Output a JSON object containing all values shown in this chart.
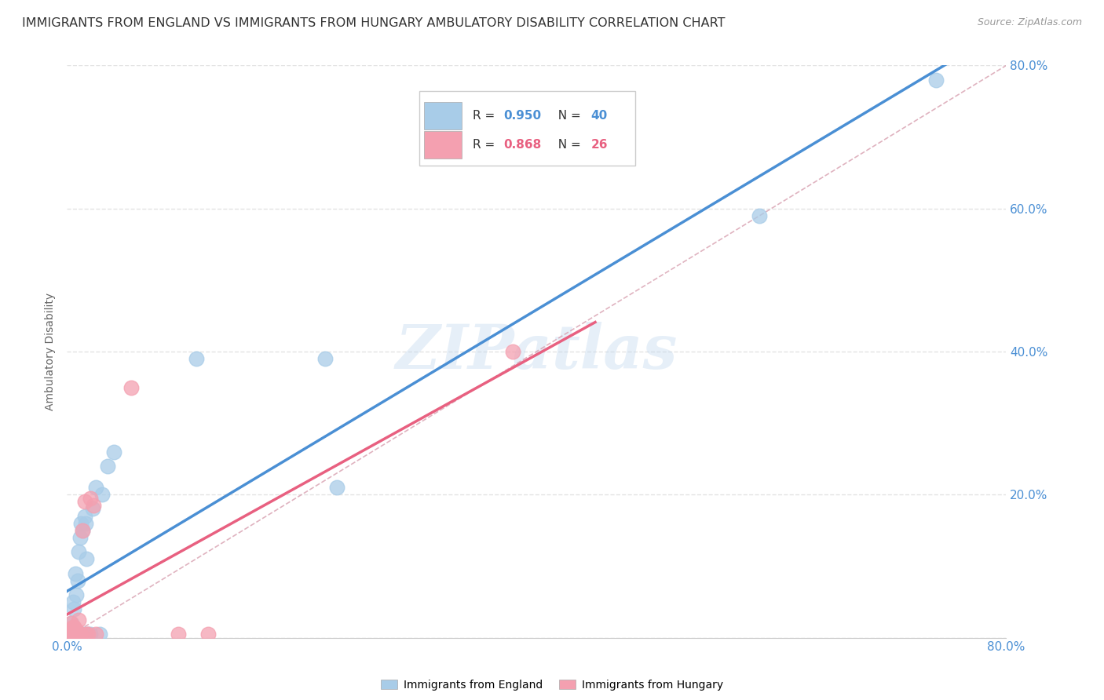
{
  "title": "IMMIGRANTS FROM ENGLAND VS IMMIGRANTS FROM HUNGARY AMBULATORY DISABILITY CORRELATION CHART",
  "source": "Source: ZipAtlas.com",
  "ylabel": "Ambulatory Disability",
  "xlim": [
    0,
    0.8
  ],
  "ylim": [
    0,
    0.8
  ],
  "england_color": "#A8CCE8",
  "hungary_color": "#F4A0B0",
  "england_line_color": "#4A8FD4",
  "hungary_line_color": "#E86080",
  "diagonal_color": "#D8A0B0",
  "watermark": "ZIPatlas",
  "background_color": "#FFFFFF",
  "grid_color": "#DDDDDD",
  "title_fontsize": 11.5,
  "axis_label_fontsize": 10,
  "tick_fontsize": 11,
  "england_x": [
    0.002,
    0.003,
    0.003,
    0.004,
    0.004,
    0.005,
    0.005,
    0.005,
    0.006,
    0.006,
    0.007,
    0.007,
    0.008,
    0.008,
    0.009,
    0.009,
    0.01,
    0.01,
    0.011,
    0.011,
    0.012,
    0.012,
    0.013,
    0.014,
    0.015,
    0.016,
    0.017,
    0.018,
    0.02,
    0.022,
    0.025,
    0.028,
    0.03,
    0.035,
    0.04,
    0.11,
    0.22,
    0.23,
    0.59,
    0.74
  ],
  "england_y": [
    0.005,
    0.005,
    0.008,
    0.005,
    0.02,
    0.005,
    0.008,
    0.05,
    0.005,
    0.04,
    0.005,
    0.09,
    0.005,
    0.06,
    0.005,
    0.08,
    0.005,
    0.12,
    0.005,
    0.14,
    0.005,
    0.16,
    0.15,
    0.005,
    0.17,
    0.16,
    0.11,
    0.005,
    0.005,
    0.18,
    0.21,
    0.005,
    0.2,
    0.24,
    0.26,
    0.39,
    0.39,
    0.21,
    0.59,
    0.78
  ],
  "hungary_x": [
    0.002,
    0.003,
    0.003,
    0.004,
    0.004,
    0.005,
    0.005,
    0.006,
    0.006,
    0.007,
    0.008,
    0.009,
    0.01,
    0.011,
    0.012,
    0.013,
    0.015,
    0.017,
    0.018,
    0.02,
    0.023,
    0.025,
    0.055,
    0.095,
    0.12,
    0.38
  ],
  "hungary_y": [
    0.005,
    0.005,
    0.02,
    0.005,
    0.01,
    0.005,
    0.015,
    0.005,
    0.015,
    0.005,
    0.01,
    0.005,
    0.025,
    0.005,
    0.005,
    0.15,
    0.19,
    0.005,
    0.005,
    0.195,
    0.185,
    0.005,
    0.35,
    0.005,
    0.005,
    0.4
  ]
}
